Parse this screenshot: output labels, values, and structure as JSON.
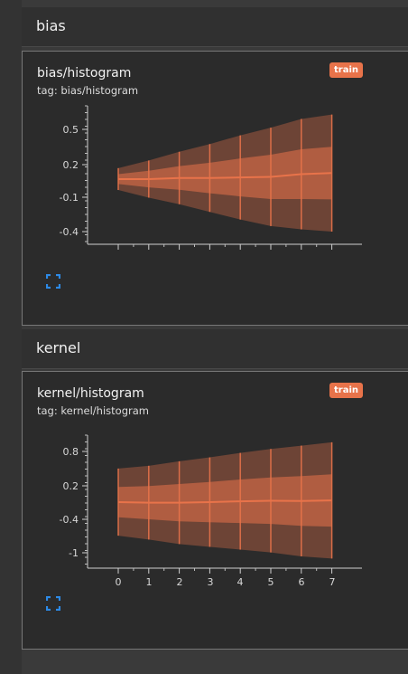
{
  "sections": [
    {
      "title": "bias",
      "card": {
        "title": "bias/histogram",
        "tag": "tag: bias/histogram",
        "badge": "train",
        "y_ticks": [
          "0.5",
          "0.2",
          "-0.1",
          "-0.4"
        ]
      }
    },
    {
      "title": "kernel",
      "card": {
        "title": "kernel/histogram",
        "tag": "tag: kernel/histogram",
        "badge": "train",
        "y_ticks": [
          "0.8",
          "0.2",
          "-0.4",
          "-1"
        ],
        "x_ticks": [
          "0",
          "1",
          "2",
          "3",
          "4",
          "5",
          "6",
          "7"
        ]
      }
    }
  ],
  "colors": {
    "accent": "#e8734a",
    "expand_icon": "#2d8ae6"
  },
  "icons": {
    "expand": "expand-icon"
  },
  "chart_data": [
    {
      "type": "histogram",
      "title": "bias/histogram",
      "steps": [
        0,
        1,
        2,
        3,
        4,
        5,
        6,
        7
      ],
      "value_range_per_step": [
        [
          -0.07,
          0.13
        ],
        [
          -0.14,
          0.2
        ],
        [
          -0.2,
          0.28
        ],
        [
          -0.27,
          0.35
        ],
        [
          -0.34,
          0.43
        ],
        [
          -0.4,
          0.5
        ],
        [
          -0.43,
          0.58
        ],
        [
          -0.45,
          0.62
        ]
      ],
      "ylim": [
        -0.5,
        0.65
      ]
    },
    {
      "type": "histogram",
      "title": "kernel/histogram",
      "steps": [
        0,
        1,
        2,
        3,
        4,
        5,
        6,
        7
      ],
      "value_range_per_step": [
        [
          -0.65,
          0.55
        ],
        [
          -0.72,
          0.6
        ],
        [
          -0.8,
          0.68
        ],
        [
          -0.85,
          0.75
        ],
        [
          -0.9,
          0.83
        ],
        [
          -0.95,
          0.9
        ],
        [
          -1.02,
          0.96
        ],
        [
          -1.06,
          1.02
        ]
      ],
      "ylim": [
        -1.15,
        1.05
      ]
    }
  ]
}
